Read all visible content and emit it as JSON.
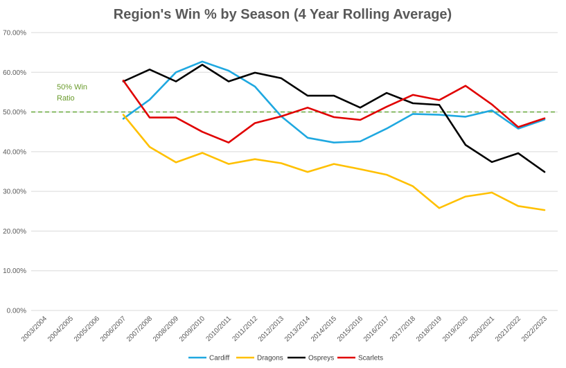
{
  "chart_data": {
    "type": "line",
    "title": "Region's Win % by Season (4 Year Rolling Average)",
    "xlabel": "",
    "ylabel": "",
    "categories": [
      "2003/2004",
      "2004/2005",
      "2005/2006",
      "2006/2007",
      "2007/2008",
      "2008/2009",
      "2009/2010",
      "2010/2011",
      "2011/2012",
      "2012/2013",
      "2013/2014",
      "2014/2015",
      "2015/2016",
      "2016/2017",
      "2017/2018",
      "2018/2019",
      "2019/2020",
      "2020/2021",
      "2021/2022",
      "2022/2023"
    ],
    "ylim": [
      0,
      70
    ],
    "yticks": [
      "0.00%",
      "10.00%",
      "20.00%",
      "30.00%",
      "40.00%",
      "50.00%",
      "60.00%",
      "70.00%"
    ],
    "grid": true,
    "legend": "bottom",
    "series": [
      {
        "name": "Cardiff",
        "color": "#1fa8e0",
        "values": [
          null,
          null,
          null,
          48.3,
          53.1,
          60.0,
          62.7,
          60.4,
          56.4,
          48.9,
          43.5,
          42.3,
          42.6,
          45.8,
          49.5,
          49.3,
          48.8,
          50.4,
          45.8,
          48.1
        ]
      },
      {
        "name": "Dragons",
        "color": "#ffc000",
        "values": [
          null,
          null,
          null,
          49.3,
          41.2,
          37.3,
          39.7,
          36.9,
          38.1,
          37.1,
          34.9,
          36.9,
          35.6,
          34.2,
          31.3,
          25.8,
          28.7,
          29.7,
          26.3,
          25.3
        ]
      },
      {
        "name": "Ospreys",
        "color": "#000000",
        "values": [
          null,
          null,
          null,
          57.7,
          60.7,
          57.7,
          61.9,
          57.7,
          59.9,
          58.5,
          54.1,
          54.1,
          51.1,
          54.8,
          52.2,
          51.8,
          41.7,
          37.4,
          39.6,
          34.9
        ]
      },
      {
        "name": "Scarlets",
        "color": "#e00000",
        "values": [
          null,
          null,
          null,
          57.9,
          48.6,
          48.6,
          45.0,
          42.3,
          47.2,
          48.9,
          51.1,
          48.7,
          48.0,
          51.3,
          54.3,
          53.0,
          56.6,
          51.9,
          46.2,
          48.4
        ]
      }
    ],
    "reference_line": {
      "value": 50,
      "color": "#70ad47",
      "label_lines": [
        "50% Win",
        "Ratio"
      ]
    }
  }
}
